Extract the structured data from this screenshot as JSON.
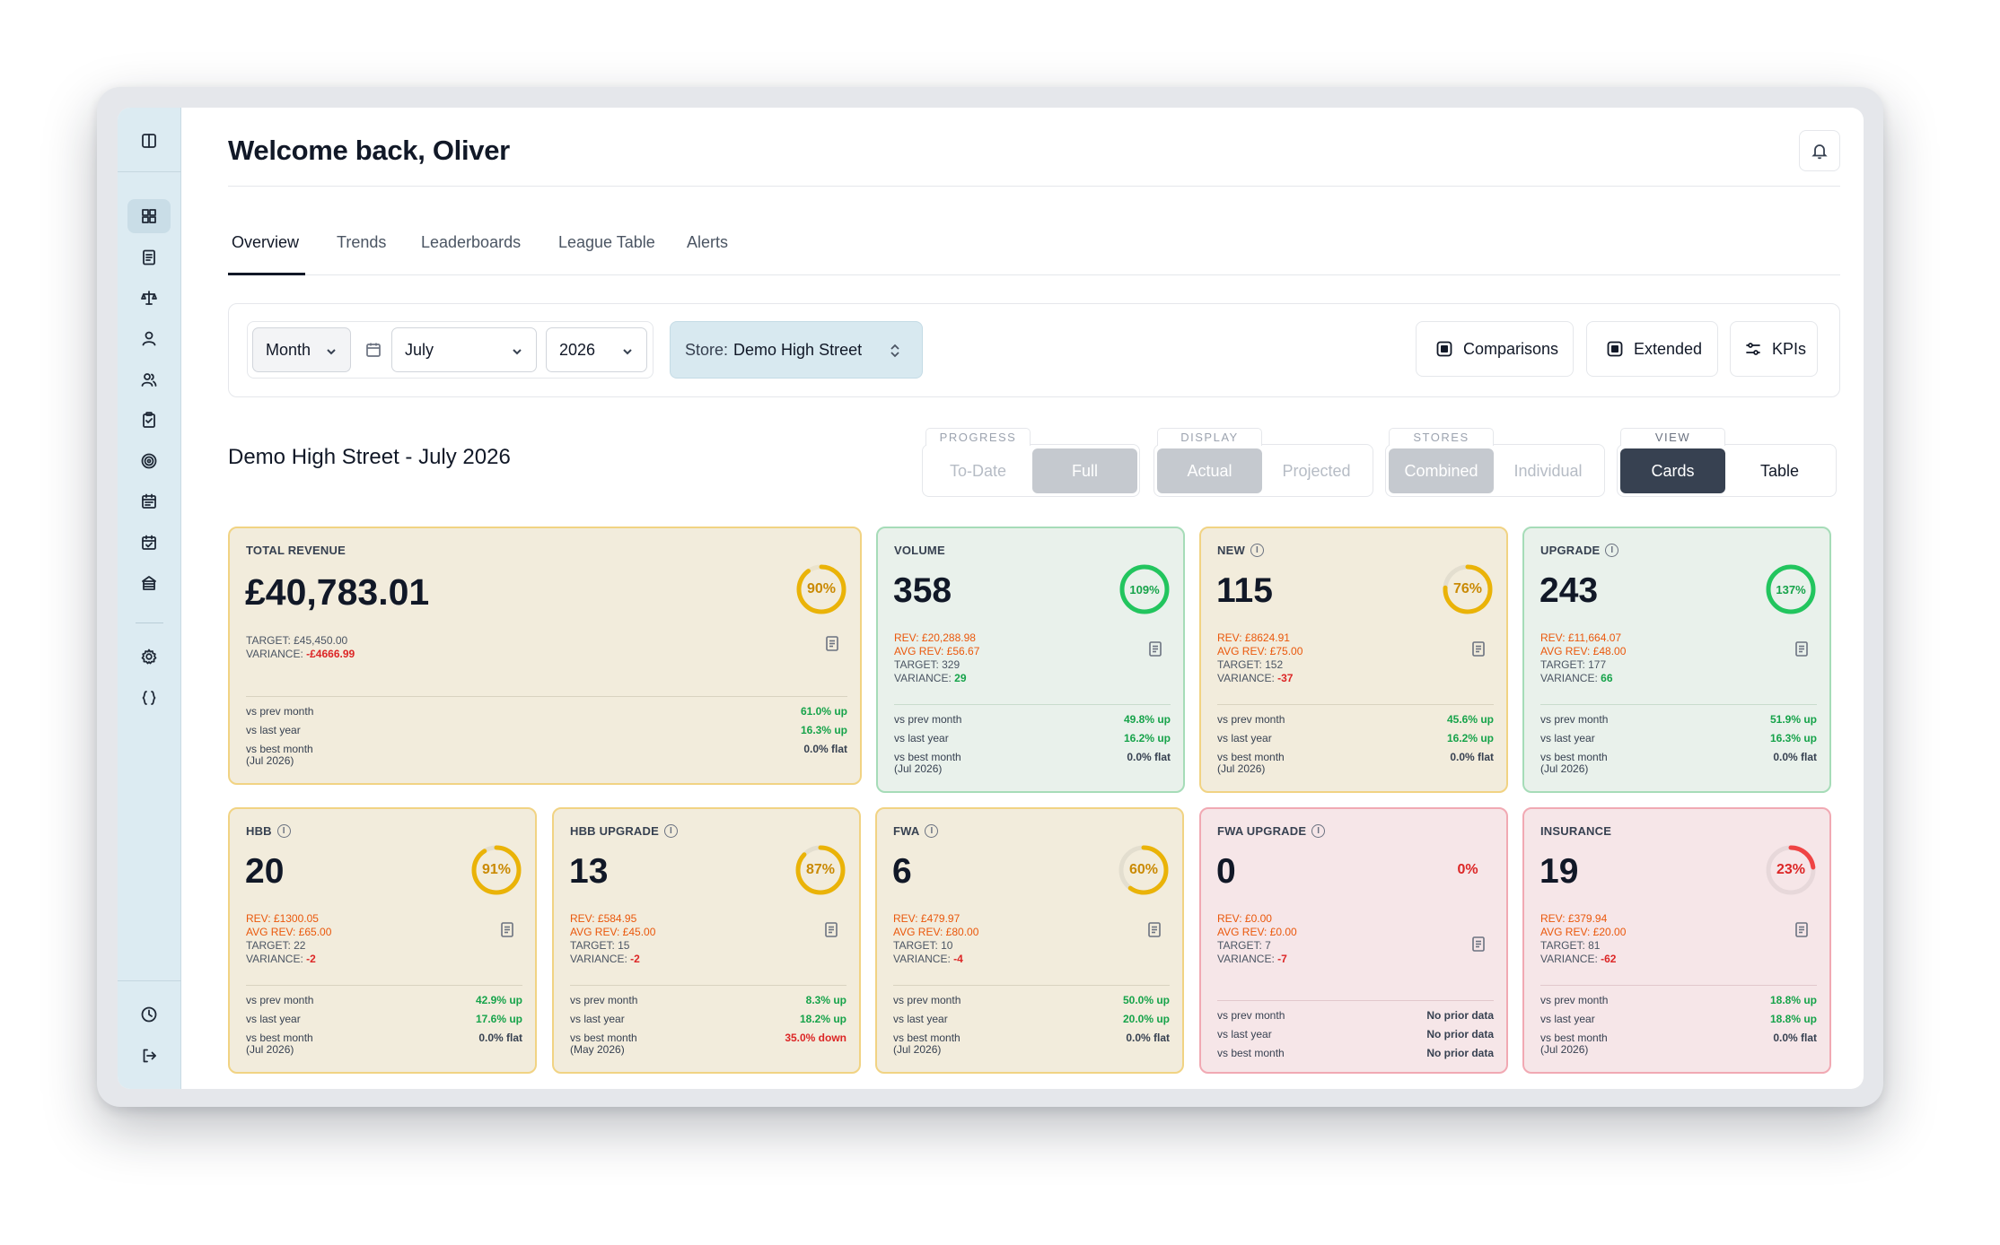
{
  "header": {
    "welcome": "Welcome back, Oliver"
  },
  "tabs": [
    {
      "label": "Overview"
    },
    {
      "label": "Trends"
    },
    {
      "label": "Leaderboards"
    },
    {
      "label": "League Table"
    },
    {
      "label": "Alerts"
    }
  ],
  "filters": {
    "period": "Month",
    "month": "July",
    "year": "2026",
    "store_prefix": "Store:",
    "store_name": "Demo High Street",
    "comparisons_label": "Comparisons",
    "extended_label": "Extended",
    "kpis_label": "KPIs"
  },
  "page_title": "Demo High Street - July 2026",
  "toggles": {
    "progress": {
      "label": "PROGRESS",
      "options": [
        "To-Date",
        "Full"
      ],
      "selected": "Full"
    },
    "display": {
      "label": "DISPLAY",
      "options": [
        "Actual",
        "Projected"
      ],
      "selected": "Actual"
    },
    "stores": {
      "label": "STORES",
      "options": [
        "Combined",
        "Individual"
      ],
      "selected": "Combined"
    },
    "view": {
      "label": "VIEW",
      "options": [
        "Cards",
        "Table"
      ],
      "selected": "Cards"
    }
  },
  "colors": {
    "yellow_ring": "#eab308",
    "green_ring": "#22c55e",
    "red_ring": "#ef4444",
    "positive": "#16a34a",
    "negative": "#dc2626",
    "orange": "#ea580c"
  },
  "cards": {
    "total_revenue": {
      "title": "TOTAL REVENUE",
      "value": "£40,783.01",
      "pct": "90%",
      "progress": 0.9,
      "target": "TARGET: £45,450.00",
      "variance_label": "VARIANCE:",
      "variance": "-£4666.99",
      "prev_label": "vs prev month",
      "prev": "61.0% up",
      "last_label": "vs last year",
      "last": "16.3% up",
      "best_label": "vs best month",
      "best": "0.0% flat",
      "best_sub": "(Jul 2026)"
    },
    "volume": {
      "title": "VOLUME",
      "value": "358",
      "pct": "109%",
      "progress": 1.0,
      "rev": "REV: £20,288.98",
      "avg": "AVG REV: £56.67",
      "target": "TARGET: 329",
      "variance_label": "VARIANCE:",
      "variance": "29",
      "prev_label": "vs prev month",
      "prev": "49.8% up",
      "last_label": "vs last year",
      "last": "16.2% up",
      "best_label": "vs best month",
      "best": "0.0% flat",
      "best_sub": "(Jul 2026)"
    },
    "new": {
      "title": "NEW",
      "value": "115",
      "pct": "76%",
      "progress": 0.76,
      "rev": "REV: £8624.91",
      "avg": "AVG REV: £75.00",
      "target": "TARGET: 152",
      "variance_label": "VARIANCE:",
      "variance": "-37",
      "prev_label": "vs prev month",
      "prev": "45.6% up",
      "last_label": "vs last year",
      "last": "16.2% up",
      "best_label": "vs best month",
      "best": "0.0% flat",
      "best_sub": "(Jul 2026)"
    },
    "upgrade": {
      "title": "UPGRADE",
      "value": "243",
      "pct": "137%",
      "progress": 1.0,
      "rev": "REV: £11,664.07",
      "avg": "AVG REV: £48.00",
      "target": "TARGET: 177",
      "variance_label": "VARIANCE:",
      "variance": "66",
      "prev_label": "vs prev month",
      "prev": "51.9% up",
      "last_label": "vs last year",
      "last": "16.3% up",
      "best_label": "vs best month",
      "best": "0.0% flat",
      "best_sub": "(Jul 2026)"
    },
    "hbb": {
      "title": "HBB",
      "value": "20",
      "pct": "91%",
      "progress": 0.91,
      "rev": "REV: £1300.05",
      "avg": "AVG REV: £65.00",
      "target": "TARGET: 22",
      "variance_label": "VARIANCE:",
      "variance": "-2",
      "prev_label": "vs prev month",
      "prev": "42.9% up",
      "last_label": "vs last year",
      "last": "17.6% up",
      "best_label": "vs best month",
      "best": "0.0% flat",
      "best_sub": "(Jul 2026)"
    },
    "hbb_upgrade": {
      "title": "HBB UPGRADE",
      "value": "13",
      "pct": "87%",
      "progress": 0.87,
      "rev": "REV: £584.95",
      "avg": "AVG REV: £45.00",
      "target": "TARGET: 15",
      "variance_label": "VARIANCE:",
      "variance": "-2",
      "prev_label": "vs prev month",
      "prev": "8.3% up",
      "last_label": "vs last year",
      "last": "18.2% up",
      "best_label": "vs best month",
      "best": "35.0% down",
      "best_sub": "(May 2026)"
    },
    "fwa": {
      "title": "FWA",
      "value": "6",
      "pct": "60%",
      "progress": 0.6,
      "rev": "REV: £479.97",
      "avg": "AVG REV: £80.00",
      "target": "TARGET: 10",
      "variance_label": "VARIANCE:",
      "variance": "-4",
      "prev_label": "vs prev month",
      "prev": "50.0% up",
      "last_label": "vs last year",
      "last": "20.0% up",
      "best_label": "vs best month",
      "best": "0.0% flat",
      "best_sub": "(Jul 2026)"
    },
    "fwa_upgrade": {
      "title": "FWA UPGRADE",
      "value": "0",
      "pct": "0%",
      "progress": 0.0,
      "rev": "REV: £0.00",
      "avg": "AVG REV: £0.00",
      "target": "TARGET: 7",
      "variance_label": "VARIANCE:",
      "variance": "-7",
      "prev_label": "vs prev month",
      "prev": "No prior data",
      "last_label": "vs last year",
      "last": "No prior data",
      "best_label": "vs best month",
      "best": "No prior data"
    },
    "insurance": {
      "title": "INSURANCE",
      "value": "19",
      "pct": "23%",
      "progress": 0.23,
      "rev": "REV: £379.94",
      "avg": "AVG REV: £20.00",
      "target": "TARGET: 81",
      "variance_label": "VARIANCE:",
      "variance": "-62",
      "prev_label": "vs prev month",
      "prev": "18.8% up",
      "last_label": "vs last year",
      "last": "18.8% up",
      "best_label": "vs best month",
      "best": "0.0% flat",
      "best_sub": "(Jul 2026)"
    }
  }
}
